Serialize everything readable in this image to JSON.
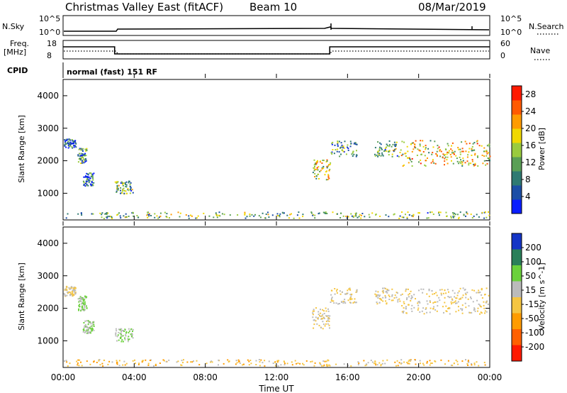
{
  "header": {
    "title": "Christmas Valley East (fitACF)",
    "beam": "Beam 10",
    "date": "08/Mar/2019"
  },
  "strips": {
    "nsky": {
      "label": "N.Sky",
      "ticks": [
        "10^5",
        "10^0"
      ]
    },
    "nsearch": {
      "label": "N.Search",
      "ticks": [
        "10^5",
        "10^0"
      ]
    },
    "freq": {
      "label_line1": "Freq.",
      "label_line2": "[MHz]",
      "ticks": [
        "18",
        "8"
      ]
    },
    "nave": {
      "label": "Nave",
      "ticks": [
        "60",
        "0"
      ]
    },
    "cpid": {
      "label": "CPID",
      "text": "normal (fast) 151 RF"
    }
  },
  "x_axis": {
    "label": "Time UT",
    "ticks": [
      "00:00",
      "04:00",
      "08:00",
      "12:00",
      "16:00",
      "20:00",
      "00:00"
    ]
  },
  "chart_data": [
    {
      "type": "heatmap",
      "name": "power",
      "ylabel": "Slant Range [km]",
      "yticks": [
        "1000",
        "2000",
        "3000",
        "4000"
      ],
      "ylim": [
        180,
        4500
      ],
      "xlim_hours": [
        0,
        24
      ],
      "colorbar": {
        "label": "Power [dB]",
        "ticks": [
          "4",
          "8",
          "12",
          "16",
          "20",
          "24",
          "28"
        ],
        "range": [
          0,
          30
        ],
        "colors": [
          "#0a1eff",
          "#1c4ea6",
          "#2f7a72",
          "#5a9f56",
          "#9acb3e",
          "#f0d800",
          "#ff9b00",
          "#ff5a00",
          "#ff1a00"
        ]
      },
      "scatter_regions": [
        {
          "t_hours": [
            0.0,
            0.7
          ],
          "range_km": [
            2350,
            2650
          ],
          "dominant_db": 6
        },
        {
          "t_hours": [
            0.8,
            1.3
          ],
          "range_km": [
            1900,
            2350
          ],
          "dominant_db": 10
        },
        {
          "t_hours": [
            1.1,
            1.7
          ],
          "range_km": [
            1200,
            1600
          ],
          "dominant_db": 7
        },
        {
          "t_hours": [
            2.9,
            3.9
          ],
          "range_km": [
            950,
            1350
          ],
          "dominant_db": 12
        },
        {
          "t_hours": [
            14.0,
            15.0
          ],
          "range_km": [
            1350,
            2000
          ],
          "dominant_db": 18
        },
        {
          "t_hours": [
            15.0,
            16.5
          ],
          "range_km": [
            2100,
            2600
          ],
          "dominant_db": 10
        },
        {
          "t_hours": [
            17.5,
            19.0
          ],
          "range_km": [
            2100,
            2600
          ],
          "dominant_db": 12
        },
        {
          "t_hours": [
            19.0,
            24.0
          ],
          "range_km": [
            1800,
            2600
          ],
          "dominant_db": 18
        },
        {
          "t_hours": [
            0.0,
            24.0
          ],
          "range_km": [
            200,
            400
          ],
          "dominant_db": 12
        }
      ]
    },
    {
      "type": "heatmap",
      "name": "velocity",
      "ylabel": "Slant Range [km]",
      "yticks": [
        "1000",
        "2000",
        "3000",
        "4000"
      ],
      "ylim": [
        180,
        4500
      ],
      "xlim_hours": [
        0,
        24
      ],
      "colorbar": {
        "label": "Velocity [m s^-1]",
        "ticks": [
          "200",
          "100",
          "50",
          "15",
          "-15",
          "-50",
          "-100",
          "-200"
        ],
        "range": [
          -250,
          250
        ],
        "colors": [
          "#1435c6",
          "#2a7f5a",
          "#6bd13c",
          "#bbbbbb",
          "#f5c542",
          "#ff9b00",
          "#ff6000",
          "#ff1a00"
        ]
      },
      "scatter_regions": [
        {
          "t_hours": [
            0.0,
            0.7
          ],
          "range_km": [
            2350,
            2650
          ],
          "dominant_ms": 0
        },
        {
          "t_hours": [
            0.8,
            1.3
          ],
          "range_km": [
            1900,
            2350
          ],
          "dominant_ms": 60
        },
        {
          "t_hours": [
            1.1,
            1.7
          ],
          "range_km": [
            1200,
            1600
          ],
          "dominant_ms": 60
        },
        {
          "t_hours": [
            2.9,
            3.9
          ],
          "range_km": [
            950,
            1350
          ],
          "dominant_ms": 60
        },
        {
          "t_hours": [
            14.0,
            15.0
          ],
          "range_km": [
            1350,
            2000
          ],
          "dominant_ms": 0
        },
        {
          "t_hours": [
            15.0,
            16.5
          ],
          "range_km": [
            2100,
            2600
          ],
          "dominant_ms": 0
        },
        {
          "t_hours": [
            17.5,
            19.0
          ],
          "range_km": [
            2100,
            2600
          ],
          "dominant_ms": 0
        },
        {
          "t_hours": [
            19.0,
            24.0
          ],
          "range_km": [
            1800,
            2600
          ],
          "dominant_ms": 0
        },
        {
          "t_hours": [
            0.0,
            24.0
          ],
          "range_km": [
            200,
            400
          ],
          "dominant_ms": -40
        }
      ]
    }
  ],
  "freq_series": [
    {
      "t_hours": [
        0,
        2.9
      ],
      "mhz": 15
    },
    {
      "t_hours": [
        2.9,
        15.0
      ],
      "mhz": 10
    },
    {
      "t_hours": [
        15.0,
        24.0
      ],
      "mhz": 15
    }
  ]
}
